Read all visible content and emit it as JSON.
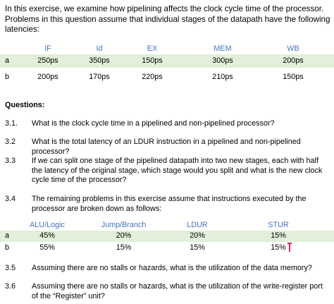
{
  "intro": "In this exercise, we examine how pipelining affects the clock cycle time of the processor. Problems in this question assume that individual stages of the datapath have the following latencies:",
  "stage_table": {
    "headers": [
      "IF",
      "Id",
      "EX",
      "MEM",
      "WB"
    ],
    "rows": [
      {
        "label": "a",
        "values": [
          "250ps",
          "350ps",
          "150ps",
          "300ps",
          "200ps"
        ]
      },
      {
        "label": "b",
        "values": [
          "200ps",
          "170ps",
          "220ps",
          "210ps",
          "150ps"
        ]
      }
    ]
  },
  "questions_heading": "Questions:",
  "questions": [
    {
      "num": "3.1.",
      "text": "What is the clock cycle time in a pipelined and non-pipelined processor?"
    },
    {
      "num": "3.2",
      "text": "What is the total latency of an LDUR instruction in a pipelined and non-pipelined processor?"
    },
    {
      "num": "3.3",
      "text": "If we can split one stage of the pipelined datapath into two new stages, each with half the latency of the original stage, which stage would you split and what is the new clock cycle time of the processor?"
    },
    {
      "num": "3.4",
      "text": "The remaining problems in this exercise assume that instructions executed by the processor are broken down as follows:"
    },
    {
      "num": "3.5",
      "text": "Assuming there are no stalls or hazards, what is the utilization of the data memory?"
    },
    {
      "num": "3.6",
      "text": "Assuming there are no stalls or hazards, what is the utilization of the write-register port of the “Register” unit?"
    }
  ],
  "instr_table": {
    "headers": [
      "ALU/Logic",
      "Jump/Branch",
      "LDUR",
      "STUR"
    ],
    "rows": [
      {
        "label": "a",
        "values": [
          "45%",
          "20%",
          "20%",
          "15%"
        ]
      },
      {
        "label": "b",
        "values": [
          "55%",
          "15%",
          "15%",
          "15%"
        ]
      }
    ]
  },
  "colors": {
    "header_text": "#4472c4",
    "row_shade": "#e2efd9",
    "cursor": "#e0245e"
  }
}
